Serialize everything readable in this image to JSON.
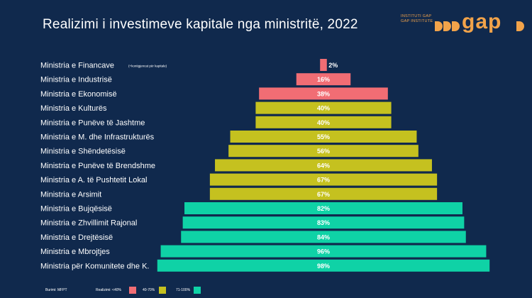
{
  "title": "Realizimi i investimeve kapitale nga ministritë, 2022",
  "logo": {
    "line1": "INSTITUTI GAP",
    "line2": "GAP INSTITUTE",
    "mark": "gap"
  },
  "colors": {
    "background": "#10294d",
    "low": "#f16d74",
    "mid": "#c5c11f",
    "high": "#0fd2a6",
    "brand": "#f2a34a"
  },
  "chart_data": {
    "type": "bar",
    "orientation": "horizontal-centered",
    "categories": [
      "Ministria e Financave",
      "Ministria e Industrisë",
      "Ministria e Ekonomisë",
      "Ministria e Kulturës",
      "Ministria e Punëve të Jashtme",
      "Ministria e M. dhe Infrastrukturës",
      "Ministria e Shëndetësisë",
      "Ministria e Punëve të Brendshme",
      "Ministria e A. të Pushtetit Lokal",
      "Ministria e Arsimit",
      "Ministria e Bujqësisë",
      "Ministria e Zhvillimit Rajonal",
      "Ministria e Drejtësisë",
      "Ministria e Mbrojtjes",
      "Ministria për Komunitete dhe K."
    ],
    "category_notes": [
      "(+kontigjencat për kapitale)",
      "",
      "",
      "",
      "",
      "",
      "",
      "",
      "",
      "",
      "",
      "",
      "",
      "",
      ""
    ],
    "values": [
      2,
      16,
      38,
      40,
      40,
      55,
      56,
      64,
      67,
      67,
      82,
      83,
      84,
      96,
      98
    ],
    "value_labels": [
      "2%",
      "16%",
      "38%",
      "40%",
      "40%",
      "55%",
      "56%",
      "64%",
      "67%",
      "67%",
      "82%",
      "83%",
      "84%",
      "96%",
      "98%"
    ],
    "groups": [
      "low",
      "low",
      "low",
      "mid",
      "mid",
      "mid",
      "mid",
      "mid",
      "mid",
      "mid",
      "high",
      "high",
      "high",
      "high",
      "high"
    ],
    "xlim": [
      0,
      100
    ],
    "legend": [
      {
        "label": "Realizimi: <40%",
        "group": "low"
      },
      {
        "label": "40-70%",
        "group": "mid"
      },
      {
        "label": "71-100%",
        "group": "high"
      }
    ],
    "legend_position": "bottom"
  },
  "footer": {
    "source": "Burimi: MFPT"
  }
}
